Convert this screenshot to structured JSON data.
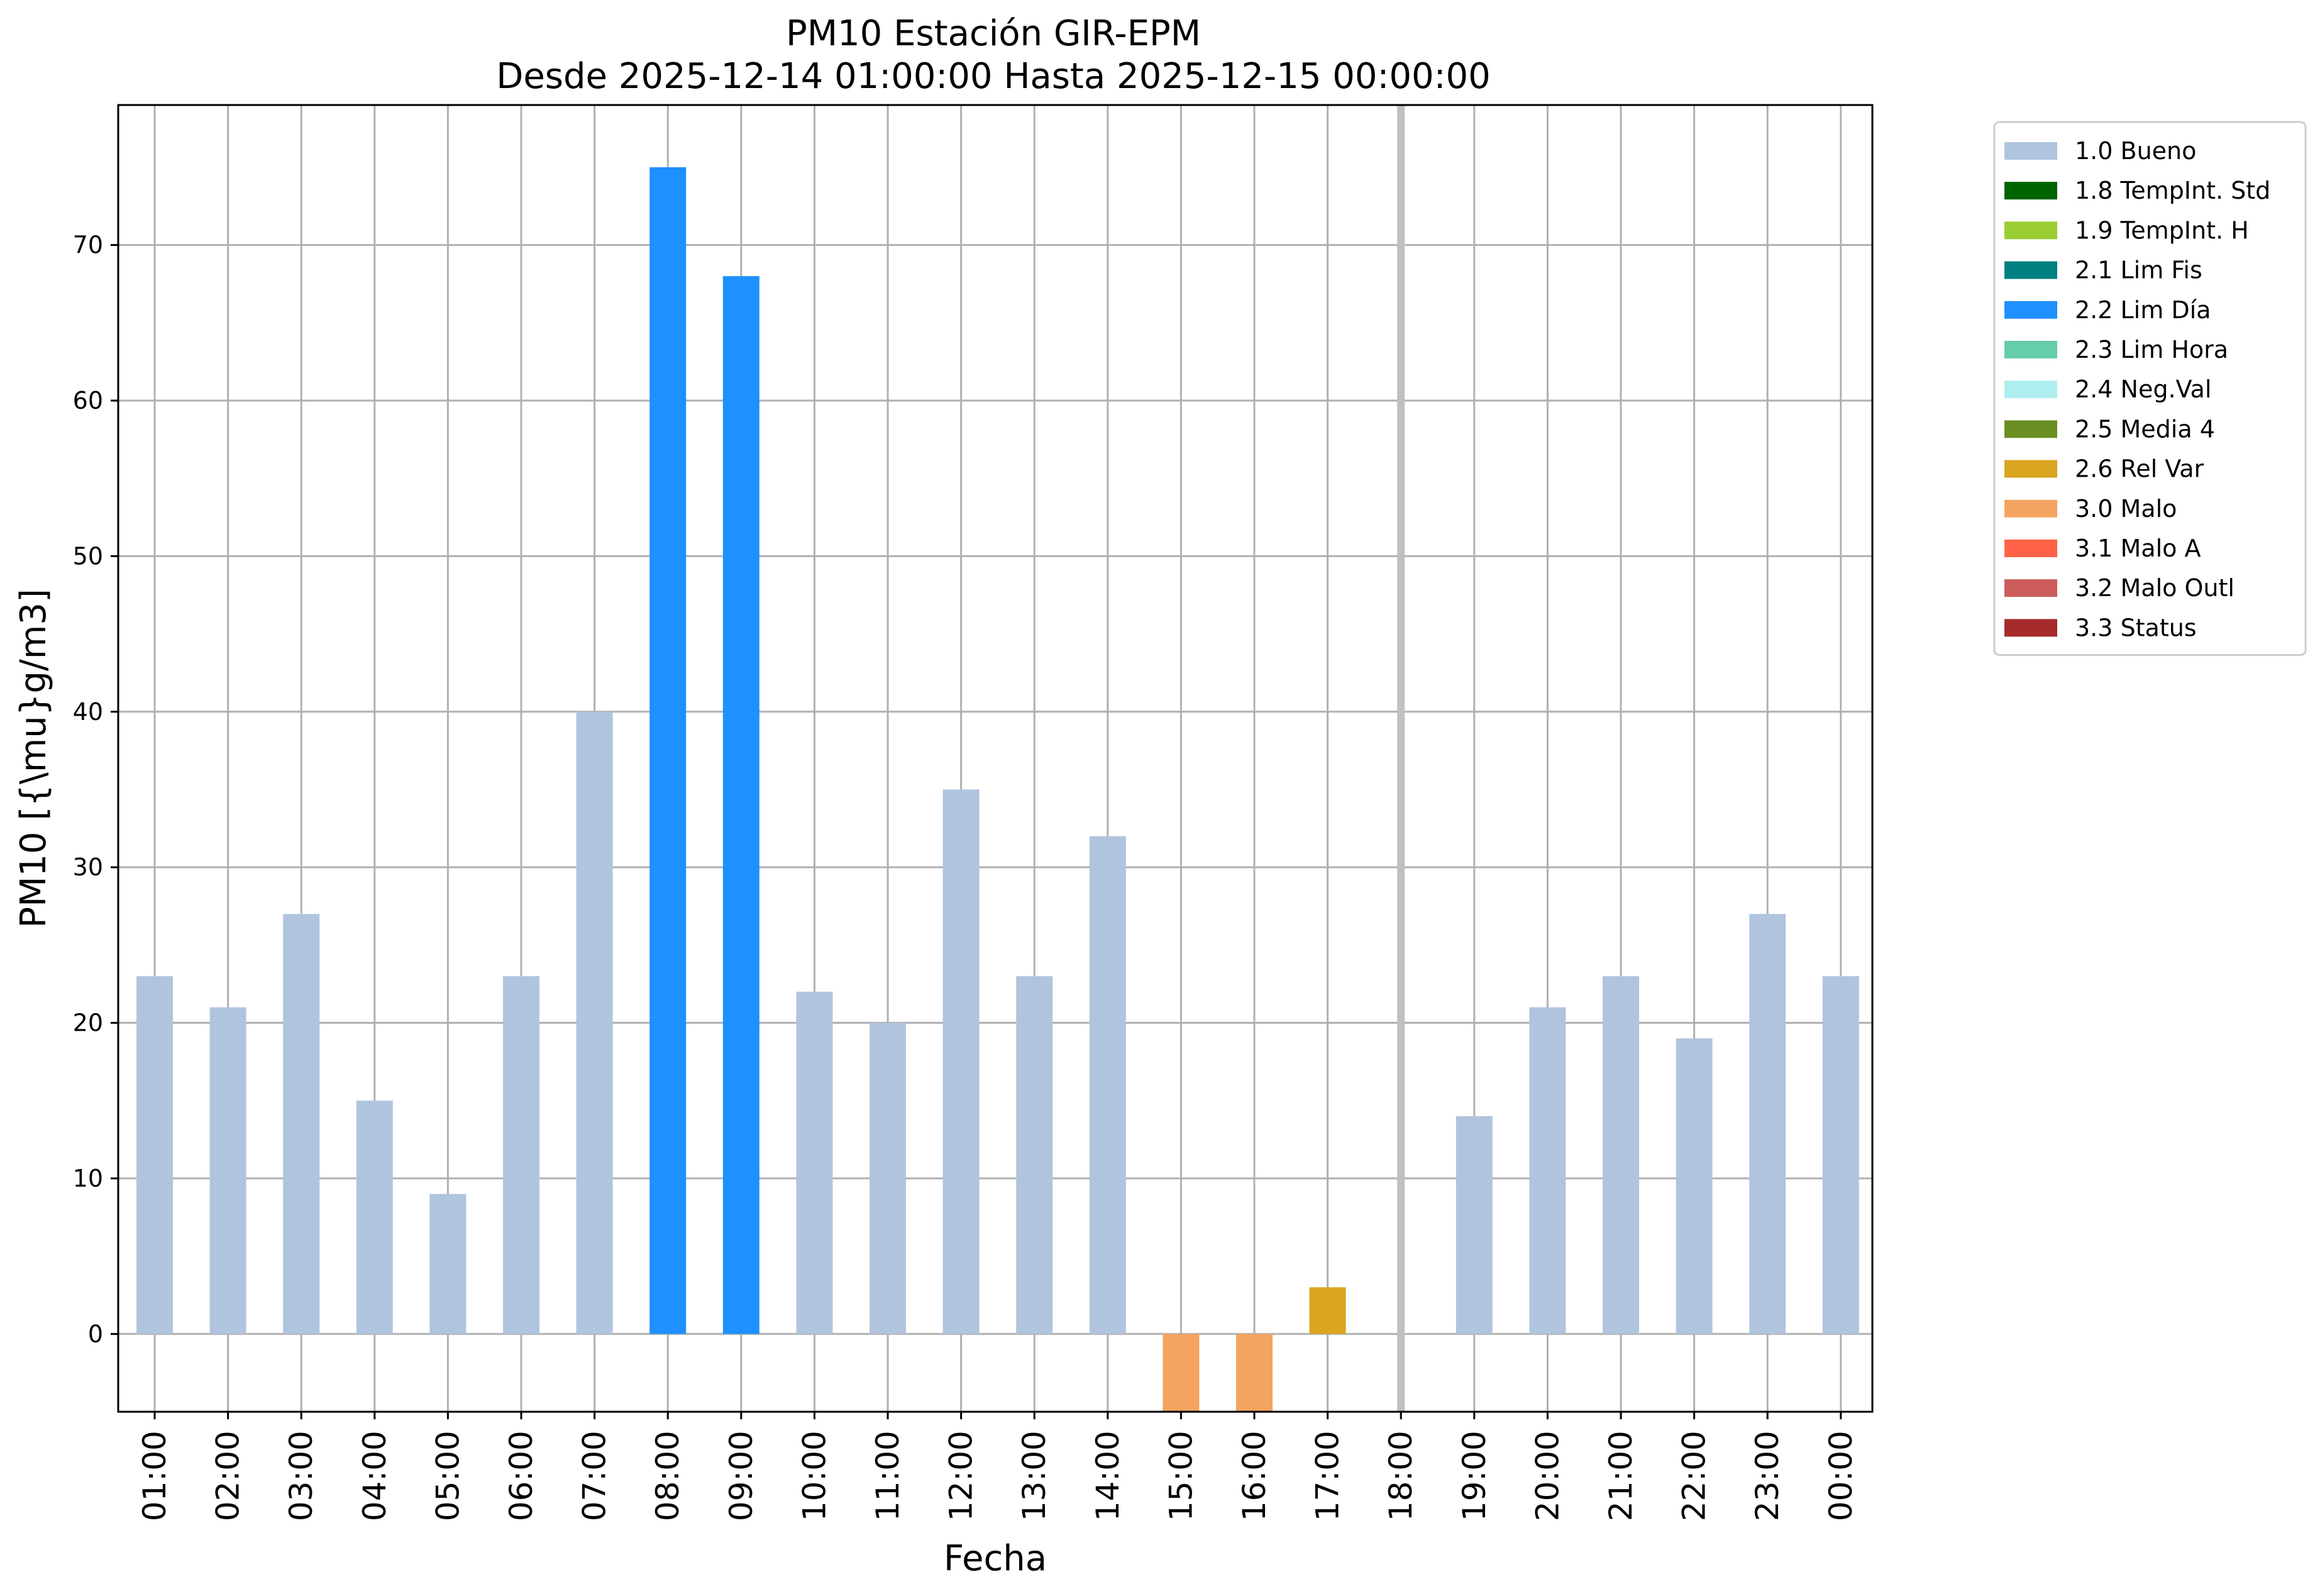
{
  "chart_data": {
    "type": "bar",
    "title": "PM10 Estación GIR-EPM",
    "subtitle": "Desde 2025-12-14 01:00:00 Hasta 2025-12-15 00:00:00",
    "xlabel": "Fecha",
    "ylabel": "PM10 [{\\mu}g/m3]",
    "ylim": [
      -5,
      79
    ],
    "yticks": [
      0,
      10,
      20,
      30,
      40,
      50,
      60,
      70
    ],
    "grid": true,
    "legend_position": "outside-right-top",
    "categories": [
      "01:00",
      "02:00",
      "03:00",
      "04:00",
      "05:00",
      "06:00",
      "07:00",
      "08:00",
      "09:00",
      "10:00",
      "11:00",
      "12:00",
      "13:00",
      "14:00",
      "15:00",
      "16:00",
      "17:00",
      "18:00",
      "19:00",
      "20:00",
      "21:00",
      "22:00",
      "23:00",
      "00:00"
    ],
    "bars": [
      {
        "x": "01:00",
        "value": 23,
        "flag": "1.0 Bueno"
      },
      {
        "x": "02:00",
        "value": 21,
        "flag": "1.0 Bueno"
      },
      {
        "x": "03:00",
        "value": 27,
        "flag": "1.0 Bueno"
      },
      {
        "x": "04:00",
        "value": 15,
        "flag": "1.0 Bueno"
      },
      {
        "x": "05:00",
        "value": 9,
        "flag": "1.0 Bueno"
      },
      {
        "x": "06:00",
        "value": 23,
        "flag": "1.0 Bueno"
      },
      {
        "x": "07:00",
        "value": 40,
        "flag": "1.0 Bueno"
      },
      {
        "x": "08:00",
        "value": 75,
        "flag": "2.2 Lim Día"
      },
      {
        "x": "09:00",
        "value": 68,
        "flag": "2.2 Lim Día"
      },
      {
        "x": "10:00",
        "value": 22,
        "flag": "1.0 Bueno"
      },
      {
        "x": "11:00",
        "value": 20,
        "flag": "1.0 Bueno"
      },
      {
        "x": "12:00",
        "value": 35,
        "flag": "1.0 Bueno"
      },
      {
        "x": "13:00",
        "value": 23,
        "flag": "1.0 Bueno"
      },
      {
        "x": "14:00",
        "value": 32,
        "flag": "1.0 Bueno"
      },
      {
        "x": "15:00",
        "value": -5,
        "flag": "3.0 Malo"
      },
      {
        "x": "16:00",
        "value": -5,
        "flag": "3.0 Malo"
      },
      {
        "x": "17:00",
        "value": 3,
        "flag": "2.6 Rel Var"
      },
      {
        "x": "18:00",
        "value": null,
        "flag": ""
      },
      {
        "x": "19:00",
        "value": 14,
        "flag": "1.0 Bueno"
      },
      {
        "x": "20:00",
        "value": 21,
        "flag": "1.0 Bueno"
      },
      {
        "x": "21:00",
        "value": 23,
        "flag": "1.0 Bueno"
      },
      {
        "x": "22:00",
        "value": 19,
        "flag": "1.0 Bueno"
      },
      {
        "x": "23:00",
        "value": 27,
        "flag": "1.0 Bueno"
      },
      {
        "x": "00:00",
        "value": 23,
        "flag": "1.0 Bueno"
      }
    ],
    "legend": [
      {
        "label": "1.0 Bueno",
        "color": "#b0c4de"
      },
      {
        "label": "1.8 TempInt. Std",
        "color": "#006400"
      },
      {
        "label": "1.9 TempInt. H",
        "color": "#9acd32"
      },
      {
        "label": "2.1 Lim Fis",
        "color": "#008080"
      },
      {
        "label": "2.2 Lim Día",
        "color": "#1e90ff"
      },
      {
        "label": "2.3 Lim Hora",
        "color": "#66cdaa"
      },
      {
        "label": "2.4 Neg.Val",
        "color": "#afeeee"
      },
      {
        "label": "2.5 Media 4",
        "color": "#6b8e23"
      },
      {
        "label": "2.6 Rel Var",
        "color": "#daa520"
      },
      {
        "label": "3.0 Malo",
        "color": "#f4a460"
      },
      {
        "label": "3.1 Malo A",
        "color": "#ff6347"
      },
      {
        "label": "3.2 Malo Outl",
        "color": "#cd5c5c"
      },
      {
        "label": "3.3 Status",
        "color": "#a52a2a"
      }
    ],
    "missing_marker": {
      "x": "18:00",
      "color": "#c0c0c0"
    }
  }
}
